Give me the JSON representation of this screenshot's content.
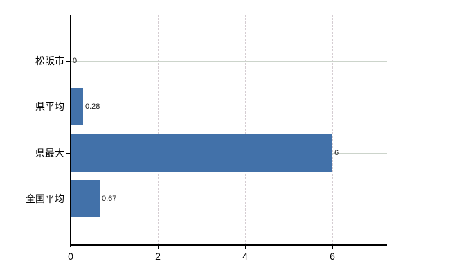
{
  "chart_data": {
    "type": "bar",
    "orientation": "horizontal",
    "categories": [
      "松阪市",
      "県平均",
      "県最大",
      "全国平均"
    ],
    "values": [
      0,
      0.28,
      6,
      0.67
    ],
    "value_labels": [
      "0",
      "0.28",
      "6",
      "0.67"
    ],
    "x_ticks": [
      0,
      2,
      4,
      6
    ],
    "x_tick_labels": [
      "0",
      "2",
      "4",
      "6"
    ],
    "xlim": [
      0,
      7.25
    ],
    "grid": "on",
    "legend": "none",
    "colors": {
      "bar": "#4271a9",
      "grid_horizontal": "#ccd4cb",
      "grid_vertical": "#d5cdd2",
      "axis": "#000000",
      "text": "#000000",
      "background": "#ffffff"
    }
  }
}
